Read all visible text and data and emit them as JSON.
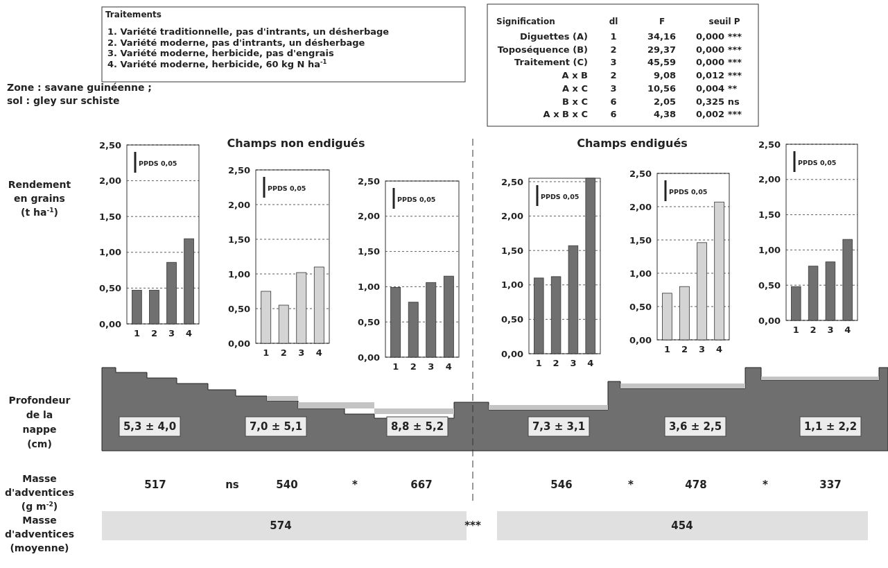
{
  "chart_data": [
    {
      "type": "bar",
      "ylabel": "Rendement\nen grains\n(t ha$^{-1}$)",
      "categories": [
        "1",
        "2",
        "3",
        "4"
      ],
      "values": [
        0.47,
        0.47,
        0.86,
        1.19
      ],
      "color": "#707070",
      "ylim": [
        0,
        2.5
      ],
      "yticks": [
        {
          "value": 0,
          "label": "0,00"
        },
        {
          "value": 0.5,
          "label": "0,50"
        },
        {
          "value": 1,
          "label": "1,00"
        },
        {
          "value": 1.5,
          "label": "1,50"
        },
        {
          "value": 2,
          "label": "2,00"
        },
        {
          "value": 2.5,
          "label": "2,50"
        }
      ],
      "grid": "y",
      "annotations": [
        "PPDS 0,05"
      ]
    },
    {
      "type": "bar",
      "title": "Champs non endigués",
      "categories": [
        "1",
        "2",
        "3",
        "4"
      ],
      "values": [
        0.75,
        0.55,
        1.02,
        1.1
      ],
      "color": "#d4d4d4",
      "ylim": [
        0,
        2.5
      ],
      "yticks": [
        {
          "value": 0,
          "label": "0,00"
        },
        {
          "value": 0.5,
          "label": "0,50"
        },
        {
          "value": 1,
          "label": "1,00"
        },
        {
          "value": 1.5,
          "label": "1,50"
        },
        {
          "value": 2,
          "label": "2,00"
        },
        {
          "value": 2.5,
          "label": "2,50"
        }
      ],
      "grid": "y",
      "annotations": [
        "PPDS 0,05"
      ]
    },
    {
      "type": "bar",
      "categories": [
        "1",
        "2",
        "3",
        "4"
      ],
      "values": [
        0.99,
        0.78,
        1.06,
        1.15
      ],
      "color": "#707070",
      "ylim": [
        0,
        2.5
      ],
      "yticks": [
        {
          "value": 0,
          "label": "0,00"
        },
        {
          "value": 0.5,
          "label": "0,50"
        },
        {
          "value": 1,
          "label": "1,00"
        },
        {
          "value": 1.5,
          "label": "1,50"
        },
        {
          "value": 2,
          "label": "2,00"
        },
        {
          "value": 2.5,
          "label": "2,50"
        }
      ],
      "grid": "y",
      "annotations": [
        "PPDS 0,05"
      ]
    },
    {
      "type": "bar",
      "categories": [
        "1",
        "2",
        "3",
        "4"
      ],
      "values": [
        1.1,
        1.12,
        1.57,
        2.55
      ],
      "color": "#707070",
      "ylim": [
        0,
        2.55
      ],
      "yticks": [
        {
          "value": 0,
          "label": "0,00"
        },
        {
          "value": 0.5,
          "label": "0,50"
        },
        {
          "value": 1,
          "label": "1,00"
        },
        {
          "value": 1.5,
          "label": "1,50"
        },
        {
          "value": 2,
          "label": "2,00"
        },
        {
          "value": 2.5,
          "label": "2,50"
        }
      ],
      "grid": "y",
      "annotations": [
        "PPDS 0,05"
      ]
    },
    {
      "type": "bar",
      "title": "Champs endigués",
      "categories": [
        "1",
        "2",
        "3",
        "4"
      ],
      "values": [
        0.7,
        0.8,
        1.46,
        2.07
      ],
      "color": "#d4d4d4",
      "ylim": [
        0,
        2.5
      ],
      "yticks": [
        {
          "value": 0,
          "label": "0,00"
        },
        {
          "value": 0.5,
          "label": "0,50"
        },
        {
          "value": 1,
          "label": "1,00"
        },
        {
          "value": 1.5,
          "label": "1,50"
        },
        {
          "value": 2,
          "label": "2,00"
        },
        {
          "value": 2.5,
          "label": "2,50"
        }
      ],
      "grid": "y",
      "annotations": [
        "PPDS 0,05"
      ]
    },
    {
      "type": "bar",
      "categories": [
        "1",
        "2",
        "3",
        "4"
      ],
      "values": [
        0.48,
        0.77,
        0.83,
        1.15
      ],
      "color": "#707070",
      "ylim": [
        0,
        2.5
      ],
      "yticks": [
        {
          "value": 0,
          "label": "0,00"
        },
        {
          "value": 0.5,
          "label": "0,50"
        },
        {
          "value": 1,
          "label": "1,00"
        },
        {
          "value": 1.5,
          "label": "1,50"
        },
        {
          "value": 2,
          "label": "2,00"
        },
        {
          "value": 2.5,
          "label": "2,50"
        }
      ],
      "grid": "y",
      "annotations": [
        "PPDS 0,05"
      ]
    },
    {
      "type": "other",
      "annotations": [
        "Traitements",
        "1. Variété traditionnelle, pas d'intrants, un désherbage",
        "2. Variété moderne, pas d'intrants, un désherbage",
        "3. Variété moderne, herbicide, pas d'engrais",
        "4. Variété moderne, herbicide, 60 kg N ha$^{-1}$",
        "Signification",
        "dl",
        "F",
        "seuil P",
        "Diguettes (A)",
        "1",
        "34,16",
        "0,000 ***",
        "Toposéquence (B)",
        "2",
        "29,37",
        "0,000 ***",
        "Traitement (C)",
        "3",
        "45,59",
        "0,000 ***",
        "A x B",
        "2",
        "9,08",
        "0,012 ***",
        "A x C",
        "3",
        "10,56",
        "0,004 **",
        "B x C",
        "6",
        "2,05",
        "0,325 ns",
        "A x B x C",
        "6",
        "4,38",
        "0,002 ***",
        "Zone : savane guinéenne ;",
        "sol : gley sur schiste",
        "Profondeur\nde la\nnappe\n(cm)",
        "Masse\nd'adventices\n(g m$^{-2}$)",
        "Masse\nd'adventices\n(moyenne)",
        "5,3 ± 4,0",
        "7,0 ± 5,1",
        "8,8 ± 5,2",
        "7,3 ± 3,1",
        "3,6 ± 2,5",
        "1,1 ± 2,2",
        "517",
        "ns",
        "540",
        "*",
        "667",
        "546",
        "*",
        "478",
        "*",
        "337",
        "574",
        "***",
        "454"
      ]
    }
  ]
}
